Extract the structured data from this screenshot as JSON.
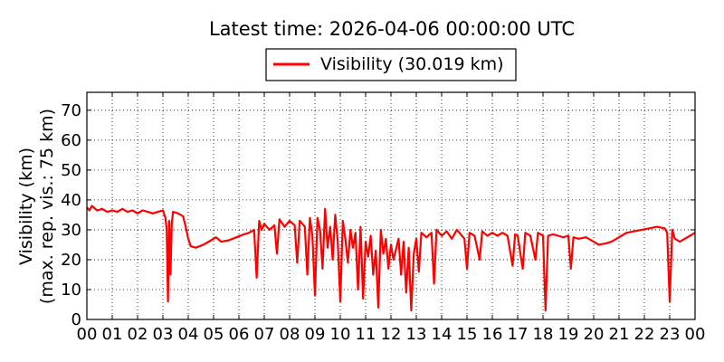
{
  "chart_data": {
    "type": "line",
    "title": "Latest time: 2026-04-06 00:00:00 UTC",
    "ylabel_line1": "Visibility (km)",
    "ylabel_line2": "(max. rep. vis.: 75 km)",
    "xlabel": "",
    "xlim": [
      0,
      24
    ],
    "ylim": [
      0,
      76
    ],
    "grid": true,
    "legend_position": "top-center",
    "x_ticks": [
      "00",
      "01",
      "02",
      "03",
      "04",
      "05",
      "06",
      "07",
      "08",
      "09",
      "10",
      "11",
      "12",
      "13",
      "14",
      "15",
      "16",
      "17",
      "18",
      "19",
      "20",
      "21",
      "22",
      "23",
      "00"
    ],
    "y_ticks": [
      0,
      10,
      20,
      30,
      40,
      50,
      60,
      70
    ],
    "series": [
      {
        "name": "Visibility (30.019 km)",
        "color": "#ff0000",
        "x_unit": "hours UTC",
        "points": [
          [
            0.0,
            37.5
          ],
          [
            0.1,
            36.5
          ],
          [
            0.2,
            38
          ],
          [
            0.4,
            36.5
          ],
          [
            0.6,
            37
          ],
          [
            0.8,
            36
          ],
          [
            1.0,
            36.5
          ],
          [
            1.2,
            36
          ],
          [
            1.4,
            37
          ],
          [
            1.6,
            36
          ],
          [
            1.8,
            36.5
          ],
          [
            2.0,
            35.5
          ],
          [
            2.2,
            36.5
          ],
          [
            2.4,
            36
          ],
          [
            2.6,
            35.5
          ],
          [
            2.8,
            36
          ],
          [
            3.0,
            36.5
          ],
          [
            3.1,
            34
          ],
          [
            3.15,
            30
          ],
          [
            3.2,
            6
          ],
          [
            3.25,
            33
          ],
          [
            3.3,
            15
          ],
          [
            3.35,
            32
          ],
          [
            3.4,
            36
          ],
          [
            3.6,
            35.5
          ],
          [
            3.8,
            34.5
          ],
          [
            3.9,
            31
          ],
          [
            4.0,
            27
          ],
          [
            4.1,
            24.5
          ],
          [
            4.3,
            24
          ],
          [
            4.6,
            25
          ],
          [
            4.9,
            26.5
          ],
          [
            5.1,
            27.5
          ],
          [
            5.3,
            26
          ],
          [
            5.6,
            26.5
          ],
          [
            5.9,
            27.5
          ],
          [
            6.2,
            28.5
          ],
          [
            6.4,
            29
          ],
          [
            6.6,
            30
          ],
          [
            6.7,
            14
          ],
          [
            6.8,
            33
          ],
          [
            6.9,
            30
          ],
          [
            7.0,
            32
          ],
          [
            7.2,
            30
          ],
          [
            7.4,
            31.5
          ],
          [
            7.5,
            22
          ],
          [
            7.6,
            33.5
          ],
          [
            7.8,
            31
          ],
          [
            8.0,
            33
          ],
          [
            8.2,
            31.5
          ],
          [
            8.3,
            19
          ],
          [
            8.4,
            33
          ],
          [
            8.6,
            31
          ],
          [
            8.7,
            15
          ],
          [
            8.8,
            34
          ],
          [
            8.9,
            28
          ],
          [
            9.0,
            8
          ],
          [
            9.1,
            34
          ],
          [
            9.2,
            30
          ],
          [
            9.3,
            17
          ],
          [
            9.4,
            37
          ],
          [
            9.5,
            24
          ],
          [
            9.6,
            31
          ],
          [
            9.7,
            20
          ],
          [
            9.8,
            35
          ],
          [
            9.9,
            26
          ],
          [
            10.0,
            6
          ],
          [
            10.1,
            33
          ],
          [
            10.2,
            27
          ],
          [
            10.3,
            19
          ],
          [
            10.4,
            30
          ],
          [
            10.5,
            24
          ],
          [
            10.6,
            29
          ],
          [
            10.7,
            10
          ],
          [
            10.8,
            31
          ],
          [
            10.9,
            7
          ],
          [
            11.0,
            26
          ],
          [
            11.1,
            21
          ],
          [
            11.2,
            28
          ],
          [
            11.3,
            15
          ],
          [
            11.4,
            23
          ],
          [
            11.5,
            4
          ],
          [
            11.6,
            30
          ],
          [
            11.7,
            22
          ],
          [
            11.8,
            27
          ],
          [
            11.9,
            17
          ],
          [
            12.0,
            25
          ],
          [
            12.1,
            20
          ],
          [
            12.3,
            27
          ],
          [
            12.4,
            15
          ],
          [
            12.5,
            26
          ],
          [
            12.6,
            9
          ],
          [
            12.7,
            24
          ],
          [
            12.8,
            3
          ],
          [
            12.9,
            22
          ],
          [
            13.0,
            27
          ],
          [
            13.1,
            16
          ],
          [
            13.2,
            29
          ],
          [
            13.4,
            27.5
          ],
          [
            13.6,
            29
          ],
          [
            13.7,
            12
          ],
          [
            13.8,
            30
          ],
          [
            14.0,
            28
          ],
          [
            14.2,
            29.5
          ],
          [
            14.4,
            27
          ],
          [
            14.6,
            30
          ],
          [
            14.8,
            28
          ],
          [
            14.9,
            27
          ],
          [
            15.0,
            17
          ],
          [
            15.1,
            29
          ],
          [
            15.3,
            28
          ],
          [
            15.5,
            20
          ],
          [
            15.6,
            29.5
          ],
          [
            15.8,
            28
          ],
          [
            16.0,
            29
          ],
          [
            16.2,
            28
          ],
          [
            16.4,
            29
          ],
          [
            16.6,
            28
          ],
          [
            16.8,
            18
          ],
          [
            16.9,
            28.5
          ],
          [
            17.0,
            28
          ],
          [
            17.2,
            17
          ],
          [
            17.3,
            29
          ],
          [
            17.5,
            28
          ],
          [
            17.7,
            20
          ],
          [
            17.8,
            29
          ],
          [
            18.0,
            28
          ],
          [
            18.1,
            3
          ],
          [
            18.2,
            28
          ],
          [
            18.4,
            28.5
          ],
          [
            18.6,
            28
          ],
          [
            18.8,
            27.5
          ],
          [
            19.0,
            28
          ],
          [
            19.1,
            17
          ],
          [
            19.2,
            27.5
          ],
          [
            19.4,
            27
          ],
          [
            19.7,
            27.5
          ],
          [
            20.0,
            26
          ],
          [
            20.2,
            25
          ],
          [
            20.5,
            25.5
          ],
          [
            20.7,
            26
          ],
          [
            20.9,
            27
          ],
          [
            21.1,
            28
          ],
          [
            21.3,
            29
          ],
          [
            21.6,
            29.5
          ],
          [
            21.9,
            30
          ],
          [
            22.2,
            30.5
          ],
          [
            22.5,
            31
          ],
          [
            22.8,
            30.5
          ],
          [
            22.9,
            29
          ],
          [
            23.0,
            6
          ],
          [
            23.1,
            30
          ],
          [
            23.2,
            27
          ],
          [
            23.4,
            26
          ],
          [
            23.6,
            27
          ],
          [
            23.8,
            28
          ],
          [
            24.0,
            29
          ]
        ]
      }
    ]
  }
}
